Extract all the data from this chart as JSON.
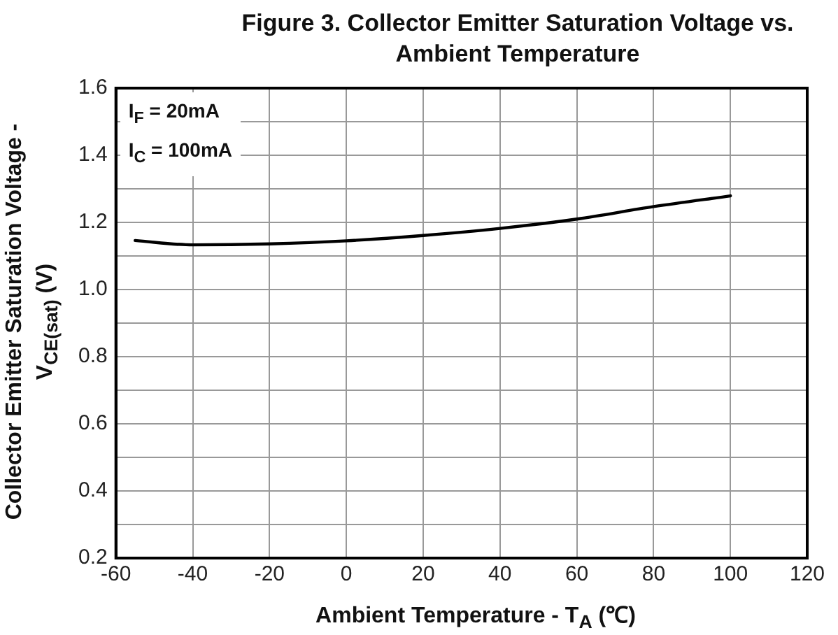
{
  "chart_data": {
    "type": "line",
    "title": "Figure 3. Collector Emitter Saturation Voltage vs. Ambient Temperature",
    "xlabel": "Ambient Temperature - T$_{A}$ (℃)",
    "ylabel": "Collector Emitter Saturation Voltage - V$_{CE(sat)}$ (V)",
    "annotations": [
      "I$_{F}$ = 20mA",
      "I$_{C}$ = 100mA"
    ],
    "x": [
      -55,
      -40,
      -20,
      0,
      20,
      40,
      60,
      80,
      100
    ],
    "series": [
      {
        "color": "#000000",
        "values": [
          1.146,
          1.133,
          1.136,
          1.145,
          1.161,
          1.182,
          1.21,
          1.247,
          1.279
        ]
      }
    ],
    "xlim": [
      -60,
      120
    ],
    "xticks": [
      -60,
      -40,
      -20,
      0,
      20,
      40,
      60,
      80,
      100,
      120
    ],
    "ylim": [
      0.2,
      1.6
    ],
    "yticks": [
      {
        "value": 0.2,
        "label": "0.2"
      },
      {
        "value": 0.3,
        "label": null
      },
      {
        "value": 0.4,
        "label": "0.4"
      },
      {
        "value": 0.5,
        "label": null
      },
      {
        "value": 0.6,
        "label": "0.6"
      },
      {
        "value": 0.7,
        "label": null
      },
      {
        "value": 0.8,
        "label": "0.8"
      },
      {
        "value": 0.9,
        "label": null
      },
      {
        "value": 1,
        "label": "1.0"
      },
      {
        "value": 1.1,
        "label": null
      },
      {
        "value": 1.2,
        "label": "1.2"
      },
      {
        "value": 1.3,
        "label": null
      },
      {
        "value": 1.4,
        "label": "1.4"
      },
      {
        "value": 1.5,
        "label": null
      },
      {
        "value": 1.6,
        "label": "1.6"
      }
    ],
    "grid": true,
    "legend": false,
    "marker": "none",
    "line_style": "solid"
  }
}
